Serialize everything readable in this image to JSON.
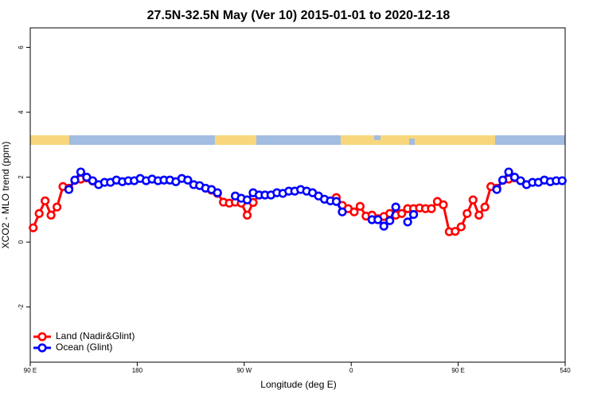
{
  "chart_data": {
    "type": "line",
    "title": "27.5N-32.5N May (Ver 10)   2015-01-01 to 2020-12-18",
    "xlabel": "Longitude (deg E)",
    "ylabel": "XCO2 - MLO trend (ppm)",
    "x": [
      92.5,
      97.5,
      102.5,
      107.5,
      112.5,
      117.5,
      122.5,
      127.5,
      132.5,
      137.5,
      142.5,
      147.5,
      152.5,
      157.5,
      162.5,
      167.5,
      172.5,
      177.5,
      182.5,
      187.5,
      192.5,
      197.5,
      202.5,
      207.5,
      212.5,
      217.5,
      222.5,
      227.5,
      232.5,
      237.5,
      242.5,
      247.5,
      252.5,
      257.5,
      262.5,
      267.5,
      272.5,
      277.5,
      282.5,
      287.5,
      292.5,
      297.5,
      302.5,
      307.5,
      312.5,
      317.5,
      322.5,
      327.5,
      332.5,
      337.5,
      342.5,
      347.5,
      352.5,
      357.5,
      362.5,
      367.5,
      372.5,
      377.5,
      382.5,
      387.5,
      392.5,
      397.5,
      402.5,
      407.5,
      412.5,
      417.5,
      422.5,
      427.5,
      432.5,
      437.5,
      442.5,
      447.5,
      452.5,
      457.5,
      462.5,
      467.5,
      472.5,
      477.5,
      482.5,
      487.5,
      492.5,
      497.5,
      502.5,
      507.5,
      512.5,
      517.5,
      522.5,
      527.5,
      532.5,
      537.5
    ],
    "series": [
      {
        "name": "Land (Nadir&Glint)",
        "color": "#ff0000",
        "values": [
          0.44,
          0.88,
          1.27,
          0.83,
          1.08,
          1.71,
          1.66,
          1.9,
          1.94,
          1.98,
          1.88,
          null,
          null,
          null,
          null,
          null,
          null,
          null,
          null,
          null,
          null,
          null,
          null,
          null,
          null,
          null,
          null,
          null,
          null,
          null,
          1.6,
          1.5,
          1.23,
          1.2,
          1.23,
          1.2,
          0.83,
          1.22,
          1.45,
          null,
          null,
          null,
          null,
          null,
          null,
          null,
          null,
          null,
          null,
          null,
          null,
          1.37,
          1.13,
          1.03,
          0.93,
          1.1,
          0.8,
          0.83,
          0.72,
          0.79,
          0.88,
          0.83,
          0.88,
          1.03,
          1.03,
          1.05,
          1.03,
          1.03,
          1.25,
          1.15,
          0.32,
          0.33,
          0.47,
          0.88,
          1.3,
          0.83,
          1.08,
          1.71,
          1.66,
          1.9,
          1.94,
          1.98,
          null,
          null,
          null,
          null,
          null,
          null,
          null,
          null
        ]
      },
      {
        "name": "Ocean (Glint)",
        "color": "#0000ff",
        "values": [
          null,
          null,
          null,
          null,
          null,
          null,
          1.62,
          1.91,
          2.16,
          2.0,
          1.89,
          1.77,
          1.84,
          1.84,
          1.91,
          1.86,
          1.89,
          1.89,
          1.96,
          1.89,
          1.94,
          1.89,
          1.91,
          1.91,
          1.86,
          1.96,
          1.91,
          1.77,
          1.74,
          1.66,
          1.62,
          1.52,
          null,
          null,
          1.42,
          1.35,
          1.3,
          1.52,
          1.45,
          1.45,
          1.45,
          1.52,
          1.5,
          1.57,
          1.57,
          1.62,
          1.57,
          1.52,
          1.42,
          1.32,
          1.27,
          1.25,
          0.93,
          null,
          null,
          null,
          null,
          0.69,
          0.69,
          0.49,
          0.66,
          1.08,
          null,
          0.62,
          0.85,
          null,
          null,
          null,
          null,
          null,
          null,
          null,
          null,
          null,
          null,
          null,
          null,
          null,
          1.62,
          1.91,
          2.16,
          2.0,
          1.89,
          1.77,
          1.84,
          1.84,
          1.91,
          1.86,
          1.89,
          1.89
        ]
      }
    ],
    "xlim": [
      90,
      540
    ],
    "xticks": [
      {
        "value": 90,
        "label": "90 E"
      },
      180,
      {
        "value": 270,
        "label": "90 W"
      },
      {
        "value": 360,
        "label": "0"
      },
      {
        "value": 450,
        "label": "90 E"
      },
      540
    ],
    "ylim": [
      -3.7,
      6.6
    ],
    "yticks": [
      -2,
      0,
      2,
      4,
      6
    ],
    "legend": "bottom-left"
  }
}
